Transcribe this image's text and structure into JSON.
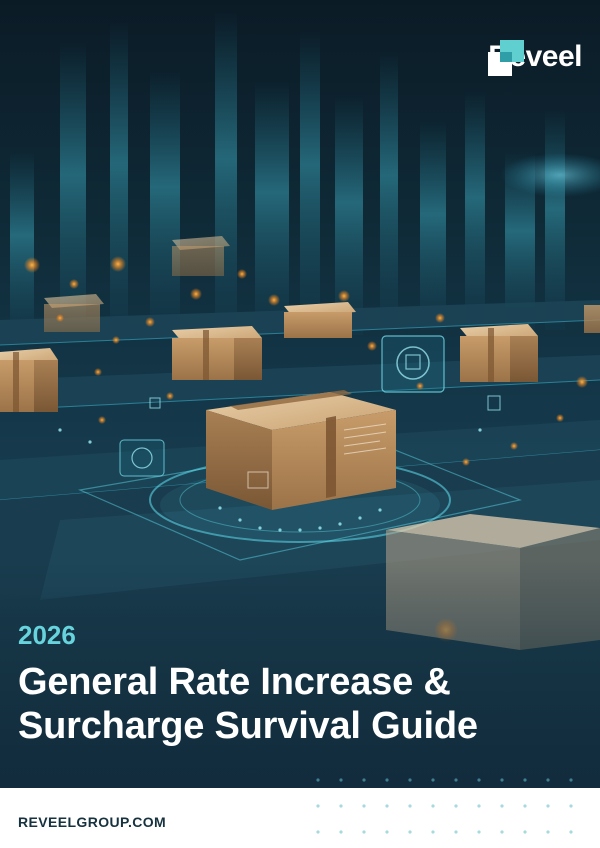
{
  "brand": {
    "name": "Reveel"
  },
  "cover": {
    "year": "2026",
    "title_line1": "General Rate Increase &",
    "title_line2": "Surcharge Survival Guide"
  },
  "footer": {
    "url": "REVEELGROUP.COM"
  },
  "colors": {
    "accent_teal": "#66d3dd",
    "logo_teal": "#5fd0cf",
    "background_dark": "#0f2a37",
    "footer_text": "#17323f"
  },
  "icons": [
    "reveel-logo-icon",
    "package-box-icon",
    "hologram-panel-icon",
    "dot-pattern-decoration"
  ]
}
